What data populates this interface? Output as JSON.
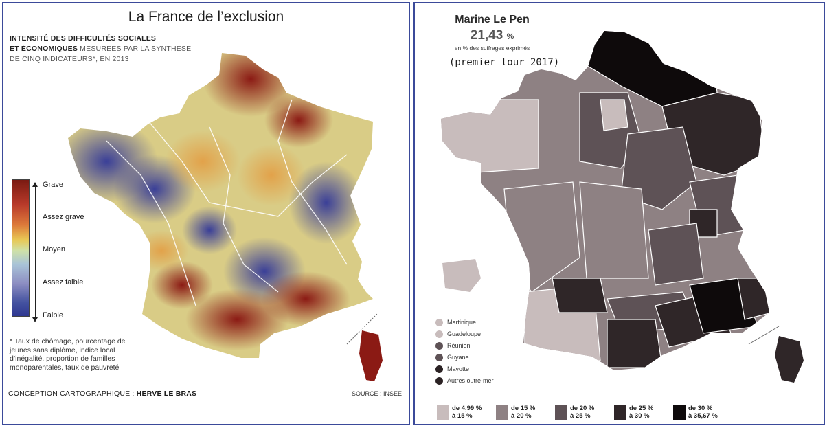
{
  "left_map": {
    "title": "La France de l’exclusion",
    "subtitle_bold_1": "INTENSITÉ DES DIFFICULTÉS SOCIALES",
    "subtitle_bold_2": "ET ÉCONOMIQUES",
    "subtitle_light_1": " MESURÉES PAR LA SYNTHÈSE",
    "subtitle_light_2": "DE CINQ INDICATEURS*, EN 2013",
    "legend": [
      "Grave",
      "Assez grave",
      "Moyen",
      "Assez faible",
      "Faible"
    ],
    "legend_colors": [
      "#7a1a12",
      "#dd7a3a",
      "#e8c855",
      "#a9c4d8",
      "#2f3891"
    ],
    "footnote": "* Taux de chômage, pourcentage de jeunes sans diplôme, indice local d’inégalité, proportion de familles monoparentales, taux de pauvreté",
    "credit_prefix": "CONCEPTION CARTOGRAPHIQUE : ",
    "credit_name": "HERVÉ LE BRAS",
    "source": "SOURCE : INSEE"
  },
  "right_map": {
    "title": "Marine Le Pen",
    "national_value": "21,43",
    "national_unit": "%",
    "caption": "en % des suffrages exprimés",
    "round": "(premier tour 2017)",
    "overseas": [
      {
        "label": "Martinique",
        "color": "#c8bcbc"
      },
      {
        "label": "Guadeloupe",
        "color": "#c8bcbc"
      },
      {
        "label": "Réunion",
        "color": "#5e5256"
      },
      {
        "label": "Guyane",
        "color": "#5e5256"
      },
      {
        "label": "Mayotte",
        "color": "#2b2224"
      },
      {
        "label": "Autres outre-mer",
        "color": "#2b2224"
      }
    ],
    "classes": [
      {
        "line1": "de 4,99 %",
        "line2": "à 15 %",
        "color": "#c8bcbc"
      },
      {
        "line1": "de 15 %",
        "line2": "à 20 %",
        "color": "#8e8183"
      },
      {
        "line1": "de 20 %",
        "line2": "à 25 %",
        "color": "#5e5256"
      },
      {
        "line1": "de 25 %",
        "line2": "à 30 %",
        "color": "#2f2628"
      },
      {
        "line1": "de 30 %",
        "line2": "à 35,67 %",
        "color": "#0e0a0b"
      }
    ]
  },
  "colors": {
    "frame": "#3b4a9a"
  }
}
